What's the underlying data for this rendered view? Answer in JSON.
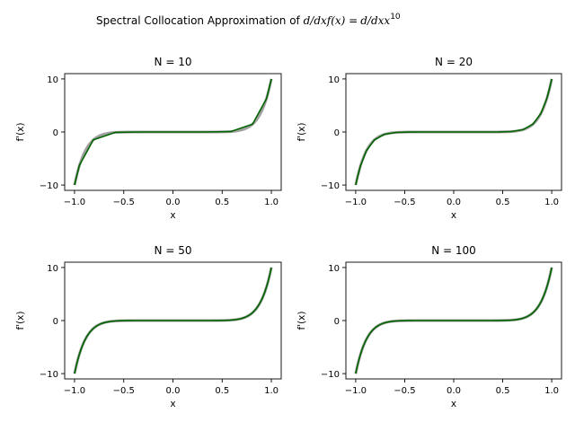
{
  "figure": {
    "title_text": "Spectral Collocation Approximation of ",
    "title_math": {
      "d_over_dx": "d/dx",
      "f_expr": "f(x) =",
      "x_base": "x",
      "exponent": "10"
    }
  },
  "colors": {
    "exact": "#808080",
    "approx": "#006400",
    "axis": "#000000"
  },
  "chart_data": [
    {
      "type": "line",
      "title": "N = 10",
      "xlabel": "x",
      "ylabel": "f'(x)",
      "xlim": [
        -1.1,
        1.1
      ],
      "ylim": [
        -11,
        11
      ],
      "xticks": [
        -1.0,
        -0.5,
        0.0,
        0.5,
        1.0
      ],
      "xtick_labels": [
        "−1.0",
        "−0.5",
        "0.0",
        "0.5",
        "1.0"
      ],
      "yticks": [
        -10,
        0,
        10
      ],
      "ytick_labels": [
        "−10",
        "0",
        "10"
      ],
      "series": [
        {
          "role": "exact",
          "function": "10*x^9",
          "samples": 200
        },
        {
          "role": "approx",
          "x": [
            -1.0,
            -0.9511,
            -0.809,
            -0.5878,
            -0.309,
            0.0,
            0.309,
            0.5878,
            0.809,
            0.9511,
            1.0
          ],
          "y": [
            -10.0,
            -6.3,
            -1.48,
            -0.08,
            0.0,
            0.0,
            0.0,
            0.08,
            1.48,
            6.3,
            10.0
          ]
        }
      ]
    },
    {
      "type": "line",
      "title": "N = 20",
      "xlabel": "x",
      "ylabel": "f'(x)",
      "xlim": [
        -1.1,
        1.1
      ],
      "ylim": [
        -11,
        11
      ],
      "xticks": [
        -1.0,
        -0.5,
        0.0,
        0.5,
        1.0
      ],
      "xtick_labels": [
        "−1.0",
        "−0.5",
        "0.0",
        "0.5",
        "1.0"
      ],
      "yticks": [
        -10,
        0,
        10
      ],
      "ytick_labels": [
        "−10",
        "0",
        "10"
      ],
      "series": [
        {
          "role": "exact",
          "function": "10*x^9",
          "samples": 200
        },
        {
          "role": "approx",
          "function": "10*x^9",
          "chebyshev_nodes": 20
        }
      ]
    },
    {
      "type": "line",
      "title": "N = 50",
      "xlabel": "x",
      "ylabel": "f'(x)",
      "xlim": [
        -1.1,
        1.1
      ],
      "ylim": [
        -11,
        11
      ],
      "xticks": [
        -1.0,
        -0.5,
        0.0,
        0.5,
        1.0
      ],
      "xtick_labels": [
        "−1.0",
        "−0.5",
        "0.0",
        "0.5",
        "1.0"
      ],
      "yticks": [
        -10,
        0,
        10
      ],
      "ytick_labels": [
        "−10",
        "0",
        "10"
      ],
      "series": [
        {
          "role": "exact",
          "function": "10*x^9",
          "samples": 200
        },
        {
          "role": "approx",
          "function": "10*x^9",
          "chebyshev_nodes": 50
        }
      ]
    },
    {
      "type": "line",
      "title": "N = 100",
      "xlabel": "x",
      "ylabel": "f'(x)",
      "xlim": [
        -1.1,
        1.1
      ],
      "ylim": [
        -11,
        11
      ],
      "xticks": [
        -1.0,
        -0.5,
        0.0,
        0.5,
        1.0
      ],
      "xtick_labels": [
        "−1.0",
        "−0.5",
        "0.0",
        "0.5",
        "1.0"
      ],
      "yticks": [
        -10,
        0,
        10
      ],
      "ytick_labels": [
        "−10",
        "0",
        "10"
      ],
      "series": [
        {
          "role": "exact",
          "function": "10*x^9",
          "samples": 200
        },
        {
          "role": "approx",
          "function": "10*x^9",
          "chebyshev_nodes": 100
        }
      ]
    }
  ]
}
